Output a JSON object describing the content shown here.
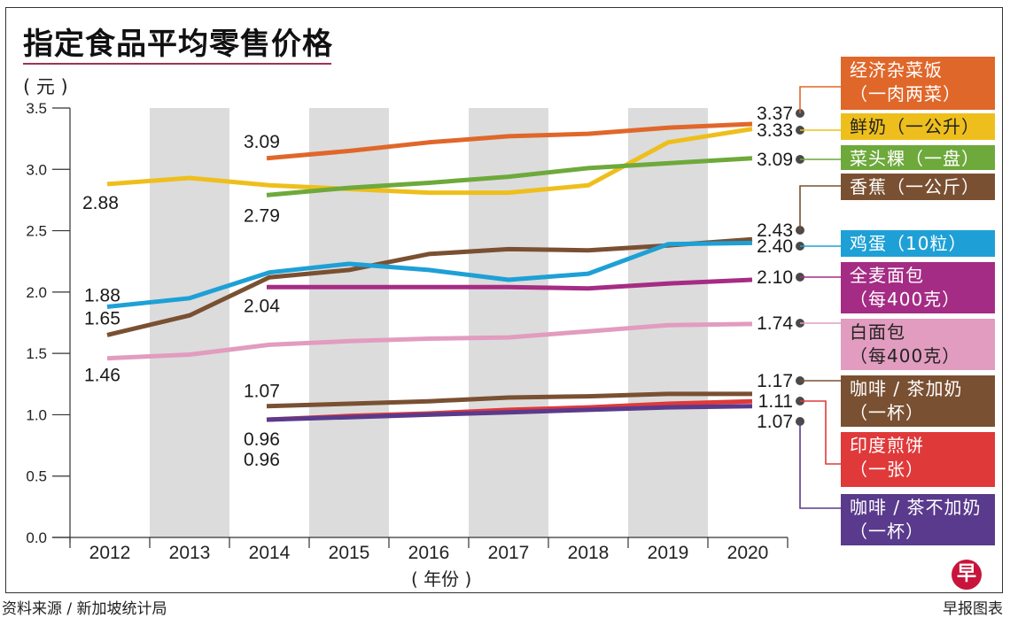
{
  "title": "指定食品平均零售价格",
  "unit_label": "( 元 )",
  "source_note": "资料来源 / 新加坡统计局",
  "credit": "早报图表",
  "logo_glyph": "早",
  "chart_data": {
    "type": "line",
    "title": "指定食品平均零售价格",
    "xlabel": "( 年份 )",
    "ylabel": "( 元 )",
    "ylim": [
      0,
      3.5
    ],
    "yticks": [
      "0.0",
      "0.5",
      "1.0",
      "1.5",
      "2.0",
      "2.5",
      "3.0",
      "3.5"
    ],
    "x": [
      "2012",
      "2013",
      "2014",
      "2015",
      "2016",
      "2017",
      "2018",
      "2019",
      "2020"
    ],
    "grid": false,
    "alternating_year_bands": true,
    "legend_placement": "right",
    "series": [
      {
        "name": "经济杂菜饭（一肉两菜）",
        "legend": [
          "经济杂菜饭",
          "（一肉两菜）"
        ],
        "color": "#e0672a",
        "text_color": "#ffffff",
        "values": [
          null,
          null,
          3.09,
          3.15,
          3.22,
          3.27,
          3.29,
          3.34,
          3.37
        ],
        "start_label": "3.09",
        "end_label": "3.37"
      },
      {
        "name": "鲜奶（一公升）",
        "legend": [
          "鲜奶（一公升）"
        ],
        "color": "#eebf1c",
        "text_color": "#222222",
        "values": [
          2.88,
          2.93,
          2.87,
          2.84,
          2.81,
          2.81,
          2.87,
          3.22,
          3.33
        ],
        "start_label": "2.88",
        "end_label": "3.33"
      },
      {
        "name": "菜头粿（一盘）",
        "legend": [
          "菜头粿（一盘）"
        ],
        "color": "#6ea93b",
        "text_color": "#ffffff",
        "values": [
          null,
          null,
          2.79,
          2.85,
          2.89,
          2.94,
          3.01,
          3.05,
          3.09
        ],
        "start_label": "2.79",
        "end_label": "3.09"
      },
      {
        "name": "香蕉（一公斤）",
        "legend": [
          "香蕉（一公斤）"
        ],
        "color": "#7a5032",
        "text_color": "#ffffff",
        "values": [
          1.65,
          1.81,
          2.12,
          2.18,
          2.31,
          2.35,
          2.34,
          2.38,
          2.43
        ],
        "start_label": "1.65",
        "end_label": "2.43"
      },
      {
        "name": "鸡蛋（10粒）",
        "legend": [
          "鸡蛋（10粒）"
        ],
        "color": "#1ea0d6",
        "text_color": "#ffffff",
        "values": [
          1.88,
          1.95,
          2.16,
          2.23,
          2.18,
          2.1,
          2.15,
          2.39,
          2.4
        ],
        "start_label": "1.88",
        "end_label": "2.40"
      },
      {
        "name": "全麦面包（每400克）",
        "legend": [
          "全麦面包",
          "（每400克）"
        ],
        "color": "#a52c84",
        "text_color": "#ffffff",
        "values": [
          null,
          null,
          2.04,
          2.04,
          2.04,
          2.04,
          2.03,
          2.07,
          2.1
        ],
        "start_label": "2.04",
        "end_label": "2.10"
      },
      {
        "name": "白面包（每400克）",
        "legend": [
          "白面包",
          "（每400克）"
        ],
        "color": "#e29cbf",
        "text_color": "#222222",
        "values": [
          1.46,
          1.49,
          1.57,
          1.6,
          1.62,
          1.63,
          1.68,
          1.73,
          1.74
        ],
        "start_label": "1.46",
        "end_label": "1.74"
      },
      {
        "name": "咖啡/茶加奶（一杯）",
        "legend": [
          "咖啡 / 茶加奶",
          "（一杯）"
        ],
        "color": "#7a5032",
        "text_color": "#ffffff",
        "values": [
          null,
          null,
          1.07,
          1.09,
          1.11,
          1.14,
          1.15,
          1.17,
          1.17
        ],
        "start_label": "1.07",
        "end_label": "1.17"
      },
      {
        "name": "印度煎饼（一张）",
        "legend": [
          "印度煎饼",
          "（一张）"
        ],
        "color": "#e0393a",
        "text_color": "#ffffff",
        "values": [
          null,
          null,
          0.96,
          0.99,
          1.01,
          1.04,
          1.06,
          1.09,
          1.11
        ],
        "start_label": "0.96",
        "end_label": "1.11"
      },
      {
        "name": "咖啡/茶不加奶（一杯）",
        "legend": [
          "咖啡 / 茶不加奶",
          "（一杯）"
        ],
        "color": "#5a3a8c",
        "text_color": "#ffffff",
        "values": [
          null,
          null,
          0.96,
          0.98,
          1.0,
          1.02,
          1.04,
          1.06,
          1.07
        ],
        "start_label": "0.96",
        "end_label": "1.07"
      }
    ]
  }
}
